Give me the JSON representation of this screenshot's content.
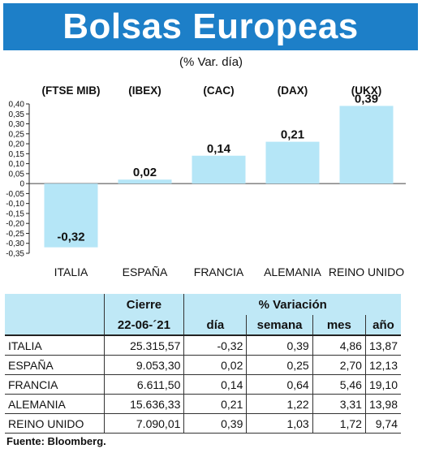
{
  "header": {
    "title": "Bolsas Europeas",
    "subtitle": "(% Var. día)"
  },
  "chart_data": {
    "type": "bar",
    "categories": [
      "ITALIA",
      "ESPAÑA",
      "FRANCIA",
      "ALEMANIA",
      "REINO UNIDO"
    ],
    "indices": [
      "(FTSE MIB)",
      "(IBEX)",
      "(CAC)",
      "(DAX)",
      "(UKX)"
    ],
    "values": [
      -0.32,
      0.02,
      0.14,
      0.21,
      0.39
    ],
    "value_labels": [
      "-0,32",
      "0,02",
      "0,14",
      "0,21",
      "0,39"
    ],
    "ylim": [
      -0.35,
      0.4
    ],
    "yticks": [
      0.4,
      0.35,
      0.3,
      0.25,
      0.2,
      0.15,
      0.1,
      0.05,
      0,
      -0.05,
      -0.1,
      -0.15,
      -0.2,
      -0.25,
      -0.3,
      -0.35
    ],
    "ytick_labels": [
      "0,40",
      "0,35",
      "0,30",
      "0,25",
      "0,20",
      "0,15",
      "0,10",
      "0,05",
      "0",
      "-0,05",
      "-0,10",
      "-0,15",
      "-0,20",
      "-0,25",
      "-0,30",
      "-0,35"
    ],
    "bar_color": "#b5e6f7",
    "grid": false
  },
  "table": {
    "group_headers": {
      "cierre": "Cierre",
      "variacion": "% Variación"
    },
    "sub_headers": {
      "date": "22-06-´21",
      "dia": "día",
      "semana": "semana",
      "mes": "mes",
      "ano": "año"
    },
    "rows": [
      {
        "name": "ITALIA",
        "cierre": "25.315,57",
        "dia": "-0,32",
        "semana": "0,39",
        "mes": "4,86",
        "ano": "13,87"
      },
      {
        "name": "ESPAÑA",
        "cierre": "9.053,30",
        "dia": "0,02",
        "semana": "0,25",
        "mes": "2,70",
        "ano": "12,13"
      },
      {
        "name": "FRANCIA",
        "cierre": "6.611,50",
        "dia": "0,14",
        "semana": "0,64",
        "mes": "5,46",
        "ano": "19,10"
      },
      {
        "name": "ALEMANIA",
        "cierre": "15.636,33",
        "dia": "0,21",
        "semana": "1,22",
        "mes": "3,31",
        "ano": "13,98"
      },
      {
        "name": "REINO UNIDO",
        "cierre": "7.090,01",
        "dia": "0,39",
        "semana": "1,03",
        "mes": "1,72",
        "ano": "9,74"
      }
    ]
  },
  "footer": {
    "source": "Fuente: Bloomberg."
  }
}
